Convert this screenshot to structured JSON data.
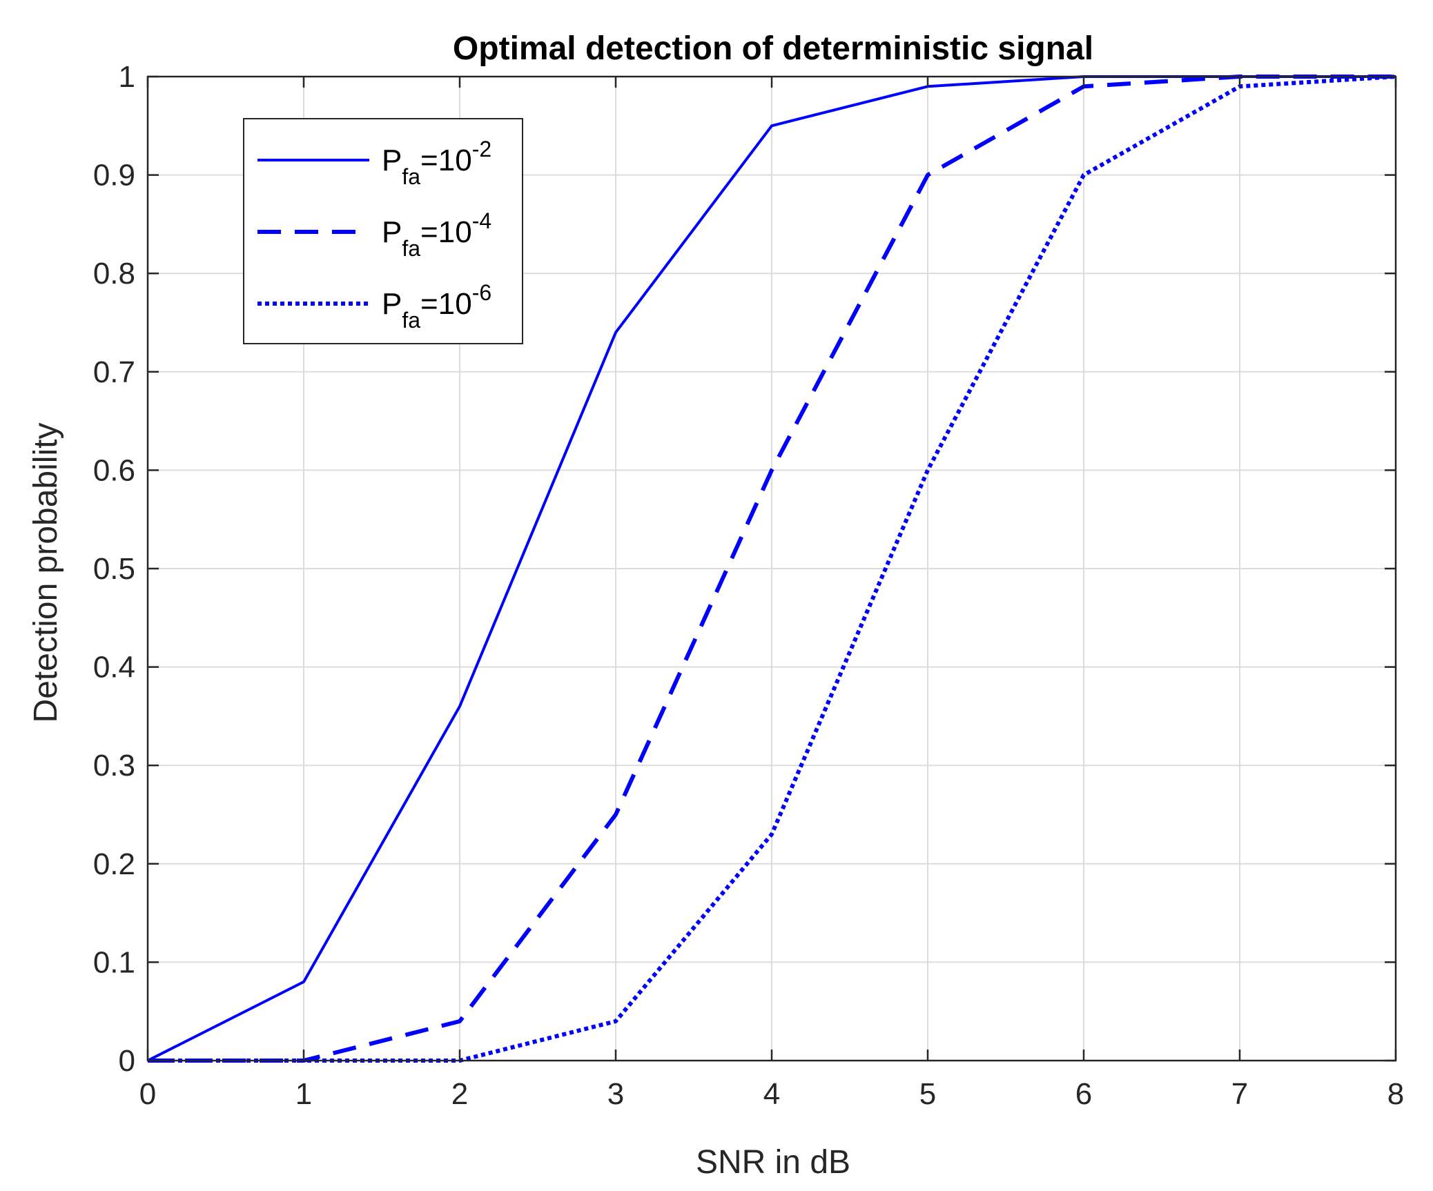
{
  "chart_data": {
    "type": "line",
    "title": "Optimal detection of deterministic signal",
    "xlabel": "SNR in dB",
    "ylabel": "Detection probability",
    "xlim": [
      0,
      8
    ],
    "ylim": [
      0,
      1
    ],
    "xticks": [
      "0",
      "1",
      "2",
      "3",
      "4",
      "5",
      "6",
      "7",
      "8"
    ],
    "yticks": [
      "0",
      "0.1",
      "0.2",
      "0.3",
      "0.4",
      "0.5",
      "0.6",
      "0.7",
      "0.8",
      "0.9",
      "1"
    ],
    "grid": true,
    "legend_position": "top-left",
    "x": [
      0,
      1,
      2,
      3,
      4,
      5,
      6,
      7,
      8
    ],
    "series": [
      {
        "name": "Pfa=10^-2",
        "legend_base": "P",
        "legend_sub": "fa",
        "legend_mid": "=10",
        "legend_sup": "-2",
        "style": "solid",
        "values": [
          0.0,
          0.08,
          0.36,
          0.74,
          0.95,
          0.99,
          1.0,
          1.0,
          1.0
        ]
      },
      {
        "name": "Pfa=10^-4",
        "legend_base": "P",
        "legend_sub": "fa",
        "legend_mid": "=10",
        "legend_sup": "-4",
        "style": "dashed",
        "values": [
          0.0,
          0.0,
          0.04,
          0.25,
          0.6,
          0.9,
          0.99,
          1.0,
          1.0
        ]
      },
      {
        "name": "Pfa=10^-6",
        "legend_base": "P",
        "legend_sub": "fa",
        "legend_mid": "=10",
        "legend_sup": "-6",
        "style": "dotted",
        "values": [
          0.0,
          0.0,
          0.0,
          0.04,
          0.23,
          0.6,
          0.9,
          0.99,
          1.0
        ]
      }
    ],
    "line_color": "#0000ff"
  }
}
